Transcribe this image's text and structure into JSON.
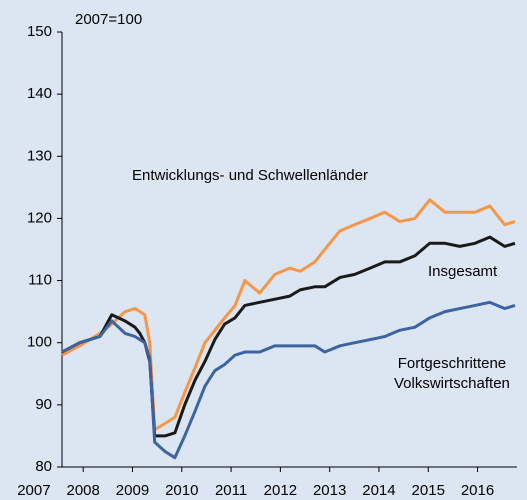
{
  "chart_data": {
    "type": "line",
    "subtitle": "2007=100",
    "x": [
      2007.57,
      2007.93,
      2008.34,
      2008.58,
      2008.85,
      2009.05,
      2009.15,
      2009.25,
      2009.35,
      2009.45,
      2009.66,
      2009.86,
      2010.06,
      2010.27,
      2010.47,
      2010.67,
      2010.87,
      2011.08,
      2011.28,
      2011.58,
      2011.89,
      2012.19,
      2012.4,
      2012.7,
      2012.9,
      2013.21,
      2013.51,
      2013.82,
      2014.12,
      2014.42,
      2014.73,
      2015.03,
      2015.34,
      2015.64,
      2015.95,
      2016.25,
      2016.55,
      2016.76
    ],
    "series": [
      {
        "name": "Entwicklungs- und Schwellenländer",
        "color": "#f79646",
        "values": [
          98,
          99.5,
          101.5,
          103,
          105,
          105.5,
          105,
          104.5,
          100,
          86,
          87,
          88,
          92,
          96,
          100,
          102,
          104,
          106,
          110,
          108,
          111,
          112,
          111.5,
          113,
          115,
          118,
          119,
          120,
          121,
          119.5,
          120,
          123,
          121,
          121,
          121,
          122,
          119,
          119.5
        ]
      },
      {
        "name": "Insgesamt",
        "color": "#1a1a1a",
        "values": [
          98.5,
          100,
          101,
          104.5,
          103.5,
          102.5,
          101.5,
          100,
          97,
          85,
          85,
          85.5,
          90,
          94,
          97,
          100.5,
          103,
          104,
          106,
          106.5,
          107,
          107.5,
          108.5,
          109,
          109,
          110.5,
          111,
          112,
          113,
          113,
          114,
          116,
          116,
          115.5,
          116,
          117,
          115.5,
          116
        ]
      },
      {
        "name": "Fortgeschrittene\nVolkswirtschaften",
        "color": "#3b64a0",
        "values": [
          98.5,
          100,
          101,
          103.5,
          101.5,
          101,
          100.5,
          100,
          97.5,
          84,
          82.5,
          81.5,
          85,
          89,
          93,
          95.5,
          96.5,
          98,
          98.5,
          98.5,
          99.5,
          99.5,
          99.5,
          99.5,
          98.5,
          99.5,
          100,
          100.5,
          101,
          102,
          102.5,
          104,
          105,
          105.5,
          106,
          106.5,
          105.5,
          106
        ]
      }
    ],
    "xlim": [
      2007.57,
      2016.76
    ],
    "xticks": [
      2007,
      2008,
      2009,
      2010,
      2011,
      2012,
      2013,
      2014,
      2015,
      2016
    ],
    "ylim": [
      80,
      150
    ],
    "yticks": [
      80,
      90,
      100,
      110,
      120,
      130,
      140,
      150
    ],
    "grid": false
  }
}
